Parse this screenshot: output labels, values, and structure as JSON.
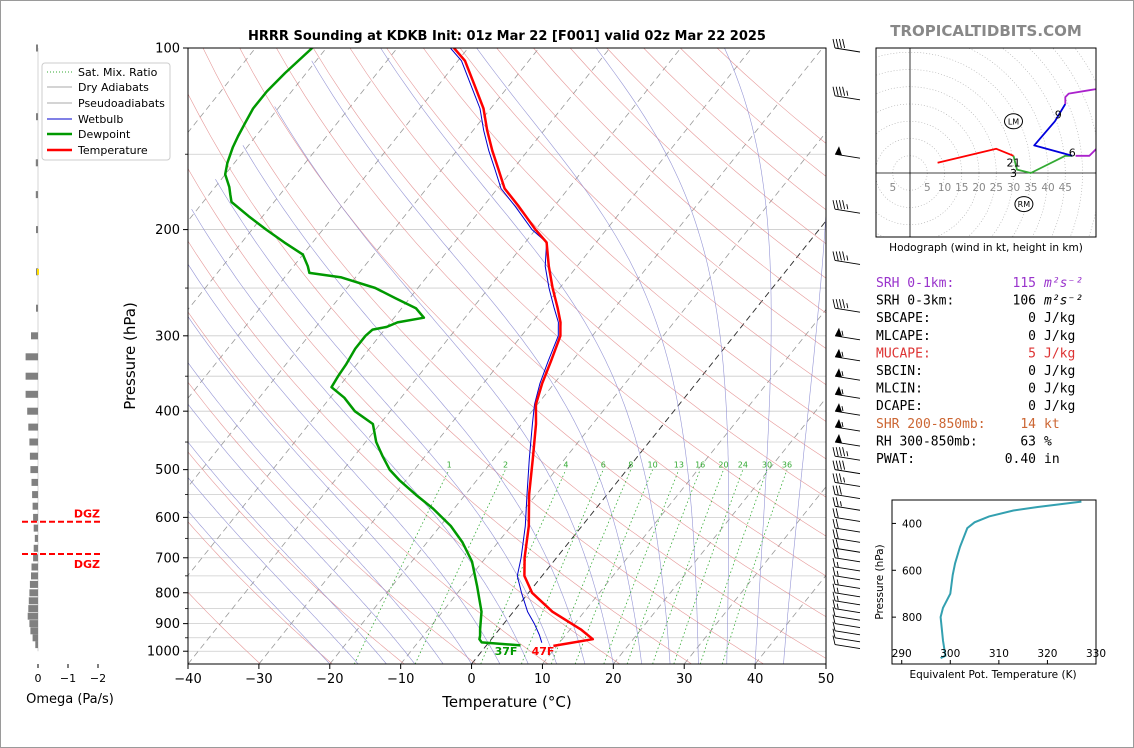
{
  "site": "TROPICALTIDBITS.COM",
  "colors": {
    "temperature": "#ff0000",
    "dewpoint": "#009900",
    "wetbulb": "#0000cc",
    "dry_adiabat": "#e08080",
    "moist_adiabat": "#8a8ad0",
    "mixing_ratio": "#33aa33",
    "theta_e": "#33a0b0",
    "dgz": "#ff0000",
    "omega": "#808080",
    "srh1": "#9933cc",
    "mucape": "#dd3333",
    "shear": "#cc6633",
    "hodo_low": "#ff0000",
    "hodo_mid": "#33aa33",
    "hodo_high": "#0000dd",
    "hodo_top": "#aa22cc"
  },
  "chart_data": [
    {
      "type": "line",
      "subtype": "skew-t",
      "title": "HRRR Sounding at KDKB Init: 01z Mar 22 [F001] valid 02z Mar 22 2025",
      "xlabel": "Temperature (°C)",
      "ylabel": "Pressure (hPa)",
      "xlim": [
        -40,
        50
      ],
      "ylim": [
        1050,
        100
      ],
      "yscale": "log",
      "x_ticks": [
        -40,
        -30,
        -20,
        -10,
        0,
        10,
        20,
        30,
        40,
        50
      ],
      "x_tick_labels": [
        "−40",
        "−30",
        "−20",
        "−10",
        "0",
        "10",
        "20",
        "30",
        "40",
        "50"
      ],
      "y_ticks": [
        100,
        200,
        300,
        400,
        500,
        600,
        700,
        800,
        900,
        1000
      ],
      "legend": {
        "position": "top-left",
        "entries": [
          "Sat. Mix. Ratio",
          "Dry Adiabats",
          "Pseudoadiabats",
          "Wetbulb",
          "Dewpoint",
          "Temperature"
        ]
      },
      "mixing_ratio_labels": [
        "1",
        "2",
        "4",
        "6",
        "8",
        "10",
        "13",
        "16",
        "20",
        "24",
        "30",
        "36"
      ],
      "mixing_ratio_values": [
        1,
        2,
        4,
        6,
        8,
        10,
        13,
        16,
        20,
        24,
        30,
        36
      ],
      "surface_labels": {
        "temperature": "47F",
        "dewpoint": "37F"
      },
      "series": [
        {
          "name": "Temperature",
          "points": [
            [
              9.5,
              980
            ],
            [
              14.3,
              955
            ],
            [
              11.5,
              920
            ],
            [
              5.5,
              860
            ],
            [
              0.5,
              800
            ],
            [
              -2.5,
              750
            ],
            [
              -4.5,
              700
            ],
            [
              -7.5,
              620
            ],
            [
              -11,
              550
            ],
            [
              -14.5,
              480
            ],
            [
              -18,
              420
            ],
            [
              -20.2,
              390
            ],
            [
              -21.7,
              360
            ],
            [
              -23,
              330
            ],
            [
              -24.5,
              300
            ],
            [
              -25.5,
              290
            ],
            [
              -26,
              285
            ],
            [
              -28,
              270
            ],
            [
              -31,
              250
            ],
            [
              -34,
              230
            ],
            [
              -37,
              210
            ],
            [
              -40,
              200
            ],
            [
              -45,
              183
            ],
            [
              -49,
              171
            ],
            [
              -52,
              159
            ],
            [
              -55,
              148
            ],
            [
              -58,
              137
            ],
            [
              -61,
              126
            ],
            [
              -65,
              115
            ],
            [
              -69,
              105
            ],
            [
              -72,
              100
            ]
          ]
        },
        {
          "name": "Dewpoint",
          "points": [
            [
              4.8,
              978
            ],
            [
              -1,
              967
            ],
            [
              -1.7,
              955
            ],
            [
              -2,
              942
            ],
            [
              -2.7,
              920
            ],
            [
              -4.5,
              860
            ],
            [
              -8,
              780
            ],
            [
              -11.5,
              710
            ],
            [
              -15,
              660
            ],
            [
              -18.5,
              620
            ],
            [
              -23,
              580
            ],
            [
              -27,
              550
            ],
            [
              -31,
              520
            ],
            [
              -33.5,
              500
            ],
            [
              -36,
              475
            ],
            [
              -38.5,
              450
            ],
            [
              -41,
              420
            ],
            [
              -45,
              400
            ],
            [
              -48,
              380
            ],
            [
              -51,
              365
            ],
            [
              -51.3,
              350
            ],
            [
              -51.5,
              335
            ],
            [
              -52,
              315
            ],
            [
              -52,
              300
            ],
            [
              -51.7,
              293
            ],
            [
              -50,
              290
            ],
            [
              -49,
              285
            ],
            [
              -45.8,
              280
            ],
            [
              -48,
              270
            ],
            [
              -52,
              260
            ],
            [
              -56,
              250
            ],
            [
              -62,
              240
            ],
            [
              -67,
              236
            ],
            [
              -68,
              230
            ],
            [
              -70,
              220
            ],
            [
              -74,
              210
            ],
            [
              -78,
              200
            ],
            [
              -82,
              190
            ],
            [
              -86,
              180
            ],
            [
              -87,
              175
            ],
            [
              -88,
              170
            ],
            [
              -90,
              162
            ],
            [
              -91,
              155
            ],
            [
              -92,
              146
            ],
            [
              -92.5,
              140
            ],
            [
              -93,
              133
            ],
            [
              -93.5,
              126
            ],
            [
              -93.5,
              118
            ],
            [
              -93,
              110
            ],
            [
              -92,
              100
            ]
          ]
        },
        {
          "name": "Wetbulb",
          "points": [
            [
              7.5,
              968
            ],
            [
              6.3,
              940
            ],
            [
              4.3,
              900
            ],
            [
              2,
              860
            ],
            [
              -1,
              800
            ],
            [
              -3.5,
              750
            ],
            [
              -5,
              700
            ],
            [
              -8,
              620
            ],
            [
              -11.3,
              550
            ],
            [
              -15,
              480
            ],
            [
              -18.5,
              420
            ],
            [
              -20.4,
              390
            ],
            [
              -22,
              360
            ],
            [
              -23.4,
              330
            ],
            [
              -24.8,
              300
            ],
            [
              -25.8,
              290
            ],
            [
              -26.3,
              285
            ],
            [
              -28.5,
              270
            ],
            [
              -31.5,
              250
            ],
            [
              -34.5,
              230
            ],
            [
              -37,
              210
            ],
            [
              -40.5,
              200
            ],
            [
              -45.5,
              183
            ],
            [
              -49.5,
              171
            ],
            [
              -52.5,
              159
            ],
            [
              -55.5,
              148
            ],
            [
              -58.5,
              137
            ],
            [
              -61.5,
              126
            ],
            [
              -65.5,
              115
            ],
            [
              -69.5,
              105
            ],
            [
              -72.5,
              100
            ]
          ]
        }
      ]
    },
    {
      "type": "bar",
      "subtype": "omega-profile",
      "xlabel": "Omega (Pa/s)",
      "x_tick_labels": [
        "0",
        "−1",
        "−2"
      ],
      "dgz_label": "DGZ",
      "dgz_levels": [
        610,
        690
      ],
      "levels": [
        100,
        130,
        155,
        175,
        200,
        235,
        270,
        300,
        325,
        350,
        375,
        400,
        425,
        450,
        475,
        500,
        525,
        550,
        575,
        600,
        625,
        650,
        675,
        700,
        725,
        750,
        775,
        800,
        825,
        850,
        875,
        900,
        925,
        950,
        975
      ],
      "values": [
        0.02,
        0.02,
        0.04,
        0.04,
        0.03,
        0.02,
        0.03,
        0.13,
        0.23,
        0.23,
        0.23,
        0.2,
        0.18,
        0.16,
        0.15,
        0.14,
        0.12,
        0.11,
        0.1,
        0.09,
        0.08,
        0.06,
        0.08,
        0.09,
        0.12,
        0.13,
        0.15,
        0.16,
        0.17,
        0.18,
        0.19,
        0.16,
        0.14,
        0.1,
        0.05
      ]
    },
    {
      "type": "line",
      "subtype": "hodograph",
      "caption": "Hodograph (wind in kt, height in km)",
      "ring_labels": [
        "5",
        "5",
        "10",
        "15",
        "20",
        "25",
        "30",
        "35",
        "40",
        "45"
      ],
      "storm_motion_labels": [
        "LM",
        "RM"
      ],
      "height_labels": [
        "1",
        "2",
        "3",
        "6",
        "9"
      ],
      "segments": [
        {
          "range_km": "0-1",
          "points": [
            [
              8,
              3
            ],
            [
              25,
              7
            ],
            [
              30,
              5
            ]
          ]
        },
        {
          "range_km": "1-3",
          "points": [
            [
              30,
              5
            ],
            [
              31,
              1
            ],
            [
              35,
              0
            ],
            [
              45,
              5
            ],
            [
              47,
              5
            ]
          ]
        },
        {
          "range_km": "3-9",
          "points": [
            [
              47,
              5
            ],
            [
              36,
              8
            ],
            [
              42,
              15
            ],
            [
              45,
              20
            ]
          ]
        },
        {
          "range_km": "9+",
          "points": [
            [
              45,
              20
            ],
            [
              45,
              22
            ],
            [
              46,
              23
            ],
            [
              52,
              24
            ],
            [
              58,
              25
            ],
            [
              57,
              20
            ],
            [
              57,
              16
            ],
            [
              56,
              11
            ],
            [
              55,
              8
            ],
            [
              52,
              5
            ],
            [
              48,
              5
            ]
          ]
        }
      ],
      "height_marks": [
        {
          "label": "1",
          "point": [
            31,
            3
          ]
        },
        {
          "label": "2",
          "point": [
            29,
            3
          ]
        },
        {
          "label": "3",
          "point": [
            30,
            0
          ]
        },
        {
          "label": "6",
          "point": [
            47,
            6
          ]
        },
        {
          "label": "9",
          "point": [
            43,
            17
          ]
        }
      ],
      "storm_motions": [
        {
          "label": "LM",
          "point": [
            30,
            15
          ]
        },
        {
          "label": "RM",
          "point": [
            33,
            -9
          ]
        }
      ]
    },
    {
      "type": "line",
      "subtype": "theta-e-profile",
      "xlabel": "Equivalent Pot. Temperature (K)",
      "ylabel": "Pressure (hPa)",
      "xlim": [
        288,
        330
      ],
      "ylim": [
        1000,
        300
      ],
      "x_tick_labels": [
        "290",
        "300",
        "310",
        "320",
        "330"
      ],
      "y_tick_labels": [
        "400",
        "600",
        "800"
      ],
      "points": [
        [
          298,
          975
        ],
        [
          299,
          965
        ],
        [
          298.5,
          900
        ],
        [
          298,
          800
        ],
        [
          298.5,
          760
        ],
        [
          300,
          700
        ],
        [
          300.5,
          620
        ],
        [
          301,
          570
        ],
        [
          302,
          500
        ],
        [
          303.5,
          420
        ],
        [
          305,
          395
        ],
        [
          308,
          370
        ],
        [
          313,
          345
        ],
        [
          318,
          330
        ],
        [
          327,
          307
        ]
      ]
    }
  ],
  "stats": [
    {
      "label": "SRH 0-1km:",
      "value": "115",
      "unit": "m²s⁻²",
      "color": "#9933cc"
    },
    {
      "label": "SRH 0-3km:",
      "value": "106",
      "unit": "m²s⁻²",
      "color": "#000000"
    },
    {
      "label": "SBCAPE:",
      "value": "0",
      "unit": "J/kg",
      "color": "#000000"
    },
    {
      "label": "MLCAPE:",
      "value": "0",
      "unit": "J/kg",
      "color": "#000000"
    },
    {
      "label": "MUCAPE:",
      "value": "5",
      "unit": "J/kg",
      "color": "#dd3333"
    },
    {
      "label": "SBCIN:",
      "value": "0",
      "unit": "J/kg",
      "color": "#000000"
    },
    {
      "label": "MLCIN:",
      "value": "0",
      "unit": "J/kg",
      "color": "#000000"
    },
    {
      "label": "DCAPE:",
      "value": "0",
      "unit": "J/kg",
      "color": "#000000"
    },
    {
      "label": "SHR 200-850mb:",
      "value": "14",
      "unit": "kt",
      "color": "#cc6633"
    },
    {
      "label": "RH 300-850mb:",
      "value": "63",
      "unit": "%",
      "color": "#000000"
    },
    {
      "label": "PWAT:",
      "value": "0.40",
      "unit": "in",
      "color": "#000000"
    }
  ],
  "wind_barbs": {
    "levels": [
      100,
      120,
      150,
      185,
      225,
      270,
      300,
      325,
      350,
      375,
      400,
      425,
      450,
      475,
      500,
      525,
      550,
      575,
      600,
      625,
      650,
      675,
      700,
      725,
      750,
      775,
      800,
      825,
      850,
      875,
      900,
      925,
      950,
      975
    ],
    "speeds_kt": [
      40,
      45,
      50,
      45,
      45,
      45,
      55,
      55,
      55,
      55,
      55,
      55,
      50,
      45,
      40,
      35,
      30,
      25,
      20,
      20,
      20,
      20,
      20,
      15,
      15,
      15,
      15,
      15,
      15,
      10,
      10,
      10,
      10,
      10
    ]
  }
}
